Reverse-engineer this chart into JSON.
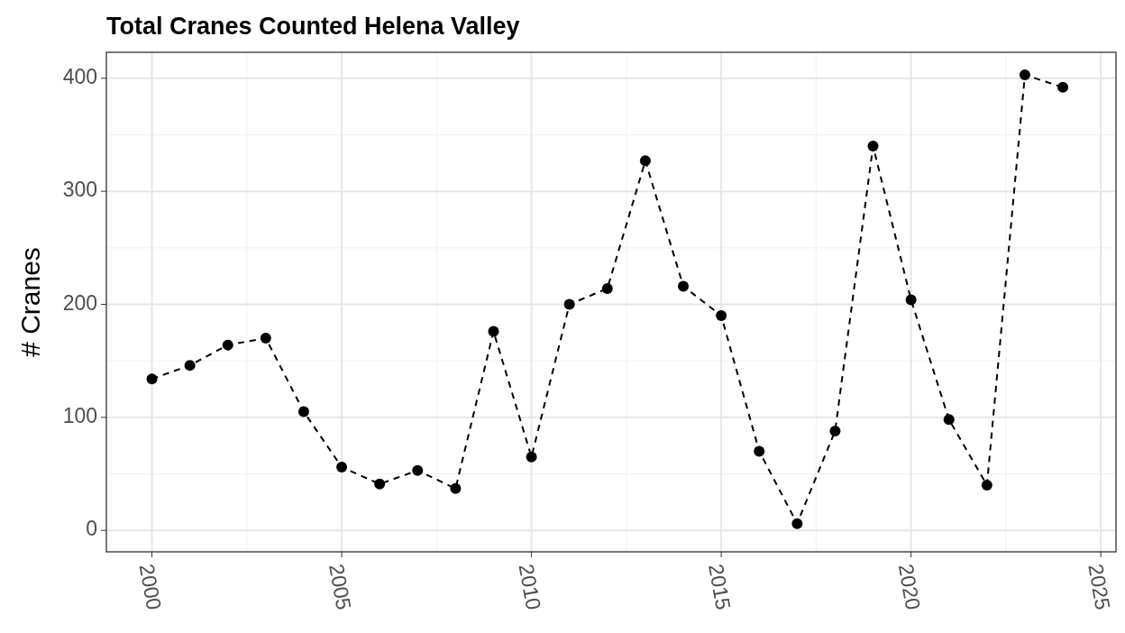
{
  "chart_data": {
    "type": "line",
    "title": "Total Cranes Counted Helena Valley",
    "ylabel": "# Cranes",
    "x": [
      2000,
      2001,
      2002,
      2003,
      2004,
      2005,
      2006,
      2007,
      2008,
      2009,
      2010,
      2011,
      2012,
      2013,
      2014,
      2015,
      2016,
      2017,
      2018,
      2019,
      2020,
      2021,
      2022,
      2023,
      2024
    ],
    "series": [
      {
        "color": "#000000",
        "values": [
          134,
          146,
          164,
          170,
          105,
          56,
          41,
          53,
          37,
          176,
          65,
          200,
          214,
          327,
          216,
          190,
          70,
          6,
          88,
          340,
          204,
          98,
          40,
          403,
          392
        ]
      }
    ],
    "xlim": [
      1998.8,
      2025.4
    ],
    "xticks": [
      2000,
      2005,
      2010,
      2015,
      2020,
      2025
    ],
    "ylim": [
      -19,
      423
    ],
    "yticks": [
      0,
      100,
      200,
      300,
      400
    ],
    "grid": true,
    "marker": "circle",
    "line_style": "dashed"
  }
}
